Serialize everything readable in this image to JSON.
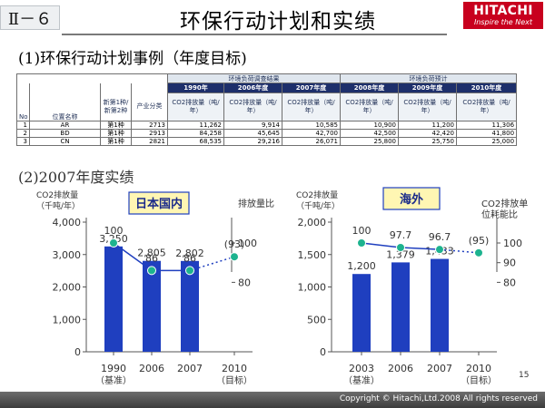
{
  "header": {
    "section": "Ⅱ－６",
    "title": "环保行动计划和实绩",
    "logo_text": "HITACHI",
    "logo_tagline": "Inspire the Next"
  },
  "section1": {
    "heading": "(1)环保行动计划事例（年度目标)"
  },
  "table": {
    "group_survey": "环境负荷调查结果",
    "group_forecast": "环境负荷预计",
    "years": [
      "1990年",
      "2006年度",
      "2007年度",
      "2008年度",
      "2009年度",
      "2010年度"
    ],
    "col_no": "No",
    "col_name": "位置名称",
    "col_type": "新第1种/新第2种",
    "col_cat": "产业分类",
    "sub_label": "CO2排放量（吨/年）",
    "rows": [
      {
        "no": "1",
        "name": "AR",
        "type": "第1种",
        "cat": "2713",
        "v": [
          "11,262",
          "9,914",
          "10,585",
          "10,900",
          "11,200",
          "11,306"
        ]
      },
      {
        "no": "2",
        "name": "BD",
        "type": "第1种",
        "cat": "2913",
        "v": [
          "84,258",
          "45,645",
          "42,700",
          "42,500",
          "42,420",
          "41,800"
        ]
      },
      {
        "no": "3",
        "name": "CN",
        "type": "第1种",
        "cat": "2821",
        "v": [
          "68,535",
          "29,216",
          "26,071",
          "25,800",
          "25,750",
          "25,000"
        ]
      }
    ]
  },
  "section2": {
    "heading": "(2)2007年度实绩"
  },
  "chart_data": [
    {
      "type": "bar",
      "title": "日本国内",
      "ylabel_left": [
        "CO2排放量",
        "（千吨/年）"
      ],
      "ylabel_right": "排放量比",
      "categories": [
        "1990",
        "2006",
        "2007",
        "2010"
      ],
      "category_notes": [
        "（基准）",
        "",
        "",
        "（目标）"
      ],
      "values": [
        3250,
        2805,
        2802,
        null
      ],
      "value_labels": [
        "3,250",
        "2,805",
        "2,802",
        ""
      ],
      "ylim": [
        0,
        4000
      ],
      "yticks": [
        "0",
        "1,000",
        "2,000",
        "3,000",
        "4,000"
      ],
      "ratio": [
        100,
        86,
        86,
        93
      ],
      "ratio_labels": [
        "100",
        "86",
        "86",
        "(93)"
      ],
      "ratio_axis": {
        "ticks": [
          "80",
          "100"
        ]
      },
      "bar_color": "#1f3fbf",
      "ratio_color": "#1db38f"
    },
    {
      "type": "bar",
      "title": "海外",
      "ylabel_left": [
        "CO2排放量",
        "（千吨/年）"
      ],
      "ylabel_right": [
        "CO2排放单",
        "位耗能比"
      ],
      "categories": [
        "2003",
        "2006",
        "2007",
        "2010"
      ],
      "category_notes": [
        "（基准）",
        "",
        "",
        "（目标）"
      ],
      "values": [
        1200,
        1379,
        1433,
        null
      ],
      "value_labels": [
        "1,200",
        "1,379",
        "1,433",
        ""
      ],
      "ylim": [
        0,
        2000
      ],
      "yticks": [
        "0",
        "500",
        "1,000",
        "1,500",
        "2,000"
      ],
      "ratio": [
        100,
        97.7,
        96.7,
        95
      ],
      "ratio_labels": [
        "100",
        "97.7",
        "96.7",
        "(95)"
      ],
      "ratio_axis": {
        "ticks": [
          "80",
          "90",
          "100"
        ]
      },
      "bar_color": "#1f3fbf",
      "ratio_color": "#1db38f"
    }
  ],
  "footer": {
    "copyright": "Copyright © Hitachi,Ltd.2008 All rights reserved",
    "page": "15"
  }
}
